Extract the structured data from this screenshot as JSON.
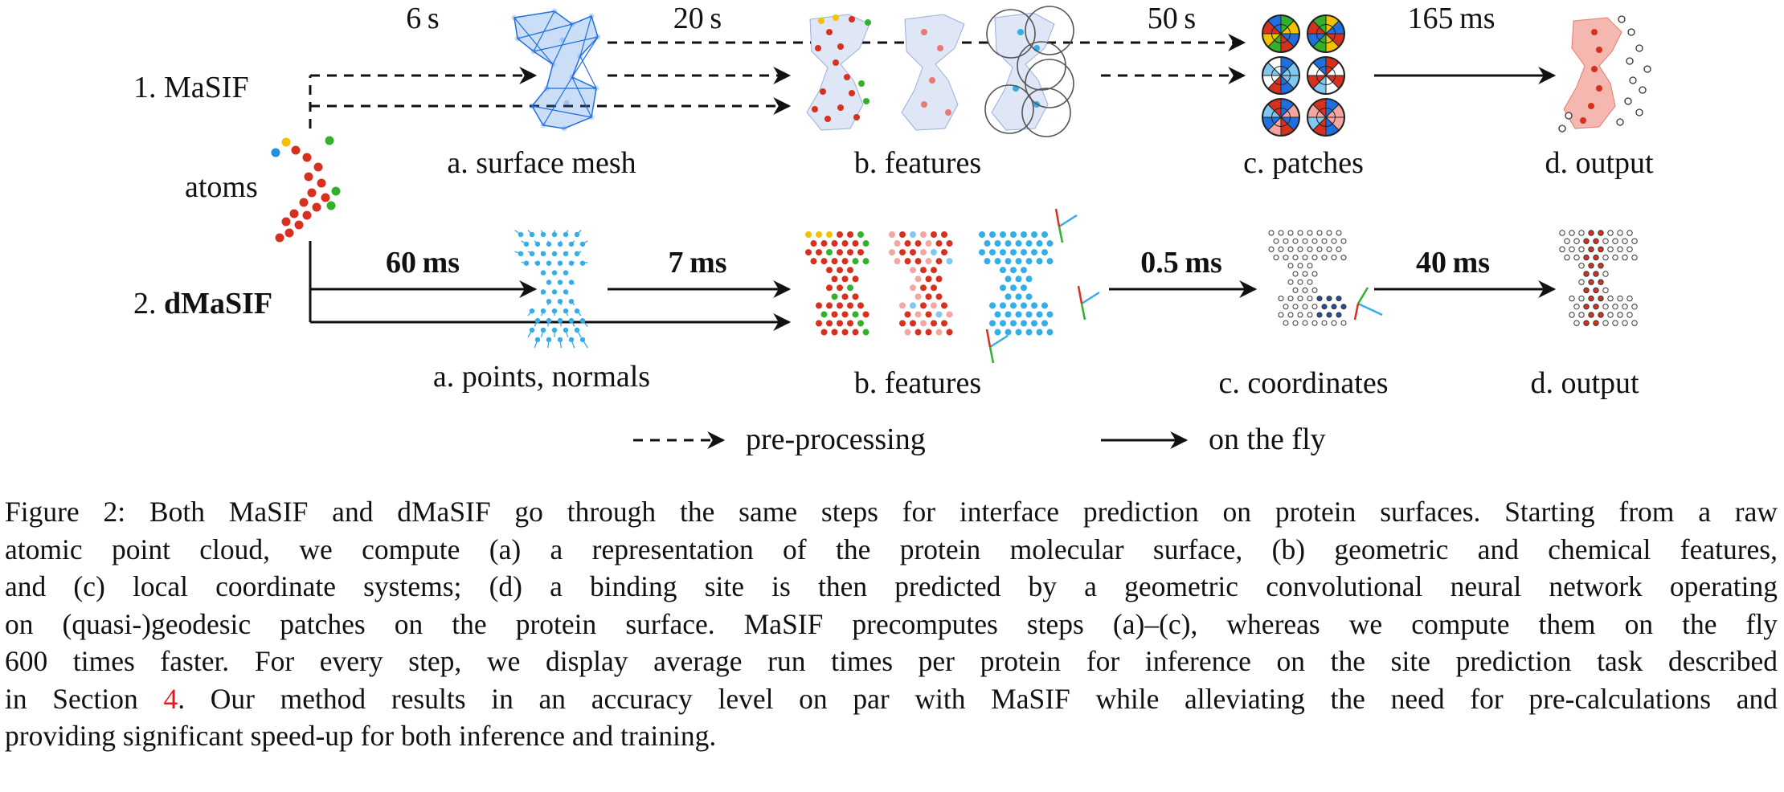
{
  "rows": {
    "masif": {
      "label": "1. MaSIF",
      "times": [
        "6 s",
        "20 s",
        "50 s",
        "165 ms"
      ],
      "steps": [
        "a. surface mesh",
        "b. features",
        "c. patches",
        "d. output"
      ]
    },
    "dmasif": {
      "label_prefix": "2. ",
      "label_bold": "dMaSIF",
      "times": [
        "60 ms",
        "7 ms",
        "0.5 ms",
        "40 ms"
      ],
      "steps": [
        "a. points, normals",
        "b. features",
        "c. coordinates",
        "d. output"
      ]
    }
  },
  "input_label": "atoms",
  "legend": {
    "dashed": "pre-processing",
    "solid": "on the fly"
  },
  "caption": {
    "lines": [
      "Figure 2: Both MaSIF and dMaSIF go through the same steps for interface prediction on protein surfaces. Starting from a raw",
      "atomic point cloud, we compute (a) a representation of the protein molecular surface, (b) geometric and chemical features,",
      "and (c) local coordinate systems; (d) a binding site is then predicted by a geometric convolutional neural network operating",
      "on (quasi-)geodesic patches on the protein surface. MaSIF precomputes steps (a)–(c), whereas we compute them on the fly",
      "600 times faster. For every step, we display average run times per protein for inference on the site prediction task described"
    ],
    "line6_before": "in Section ",
    "line6_ref": "4",
    "line6_after": ". Our method results in an accuracy level on par with MaSIF while alleviating the need for pre-calculations and",
    "line7": "providing significant speed-up for both inference and training."
  },
  "colors": {
    "atom_red": "#d7301f",
    "atom_green": "#33b02c",
    "atom_yellow": "#f2c200",
    "atom_blue": "#1f8fe0",
    "mesh_blue": "#1f6fe0",
    "point_cyan": "#33aee8",
    "ref_red": "#e41a1c"
  }
}
